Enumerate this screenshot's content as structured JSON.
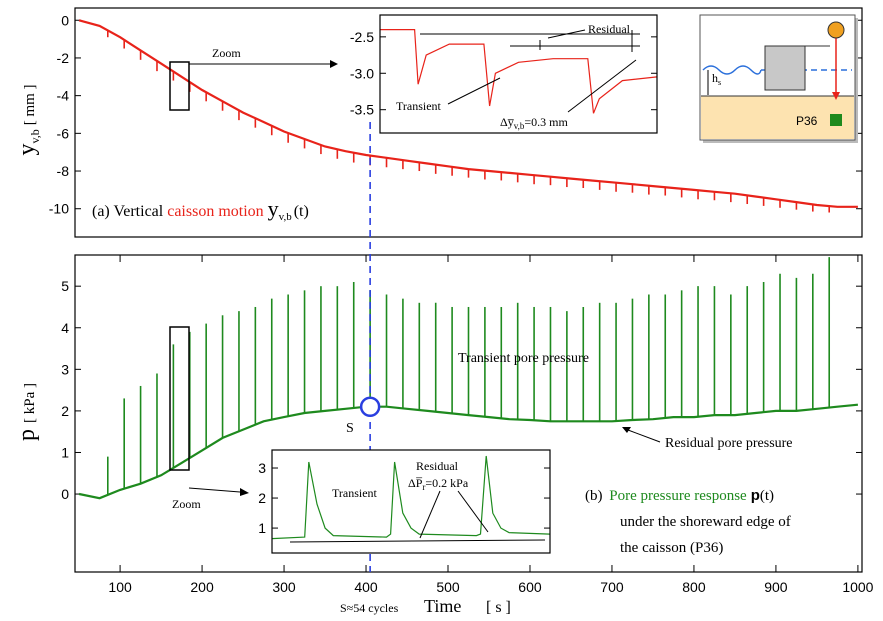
{
  "chart_data": [
    {
      "type": "line",
      "xlim": [
        45,
        1005
      ],
      "ylim": [
        -11.5,
        0.65
      ],
      "yticks": [
        0,
        -2,
        -4,
        -6,
        -8,
        -10
      ],
      "title_parts": [
        "(a)  Vertical ",
        "caisson motion",
        "y",
        "v,b",
        "(t)"
      ],
      "ylabel_parts": [
        "y",
        "v,b",
        "[ mm ]"
      ],
      "zoom_label": "Zoom",
      "series": [
        {
          "color": "#e8231a",
          "x": [
            50,
            75,
            100,
            125,
            150,
            175,
            200,
            225,
            250,
            275,
            300,
            325,
            350,
            375,
            400,
            425,
            450,
            475,
            500,
            525,
            550,
            575,
            600,
            625,
            650,
            675,
            700,
            725,
            750,
            775,
            800,
            825,
            850,
            875,
            900,
            925,
            950,
            975,
            1000
          ],
          "values": [
            0,
            -0.3,
            -0.9,
            -1.6,
            -2.3,
            -3.0,
            -3.7,
            -4.3,
            -4.9,
            -5.4,
            -5.9,
            -6.3,
            -6.7,
            -6.95,
            -7.15,
            -7.3,
            -7.45,
            -7.6,
            -7.75,
            -7.9,
            -8.0,
            -8.1,
            -8.2,
            -8.3,
            -8.4,
            -8.5,
            -8.6,
            -8.7,
            -8.8,
            -8.9,
            -9.0,
            -9.1,
            -9.2,
            -9.35,
            -9.5,
            -9.65,
            -9.8,
            -9.9,
            -9.9
          ]
        },
        {
          "color": "#e8231a",
          "style": "spikes",
          "x": [
            85,
            105,
            125,
            145,
            165,
            185,
            205,
            225,
            245,
            265,
            285,
            305,
            325,
            345,
            365,
            385,
            405,
            425,
            445,
            465,
            485,
            505,
            525,
            545,
            565,
            585,
            605,
            625,
            645,
            665,
            685,
            705,
            725,
            745,
            765,
            785,
            805,
            825,
            845,
            865,
            885,
            905,
            925,
            945,
            965
          ],
          "values": [
            -0.9,
            -1.5,
            -2.1,
            -2.7,
            -3.2,
            -3.8,
            -4.3,
            -4.8,
            -5.3,
            -5.7,
            -6.1,
            -6.5,
            -6.8,
            -7.1,
            -7.35,
            -7.55,
            -7.7,
            -7.8,
            -7.9,
            -8.0,
            -8.15,
            -8.25,
            -8.35,
            -8.45,
            -8.5,
            -8.6,
            -8.7,
            -8.75,
            -8.85,
            -8.9,
            -9.0,
            -9.1,
            -9.15,
            -9.25,
            -9.3,
            -9.4,
            -9.5,
            -9.55,
            -9.65,
            -9.75,
            -9.85,
            -9.95,
            -10.05,
            -10.15,
            -10.2
          ]
        }
      ]
    },
    {
      "type": "line",
      "xlim": [
        45,
        1005
      ],
      "ylim": [
        -1.875,
        5.75
      ],
      "yticks": [
        0,
        1,
        2,
        3,
        4,
        5
      ],
      "xticks": [
        100,
        200,
        300,
        400,
        500,
        600,
        700,
        800,
        900,
        1000
      ],
      "xlabel": "Time",
      "xlabel_unit": "[ s ]",
      "ylabel_parts": [
        "p",
        "[ kPa ]"
      ],
      "marker": {
        "label": "S",
        "x": 405,
        "y": 2.1,
        "note": "S≈54 cycles"
      },
      "title_parts": [
        "(b) ",
        "Pore pressure response",
        "p",
        "(t)",
        "under the shoreward edge of",
        "the caisson (P36)"
      ],
      "transient_label": "Transient pore pressure",
      "residual_label": "Residual pore pressure",
      "zoom_label": "Zoom",
      "series": [
        {
          "color": "#1e8a1e",
          "x": [
            50,
            75,
            100,
            125,
            150,
            175,
            200,
            225,
            250,
            275,
            300,
            325,
            350,
            375,
            400,
            425,
            450,
            475,
            500,
            525,
            550,
            575,
            600,
            625,
            650,
            675,
            700,
            725,
            750,
            775,
            800,
            825,
            850,
            875,
            900,
            925,
            950,
            975,
            1000
          ],
          "values": [
            0,
            -0.1,
            0.1,
            0.25,
            0.45,
            0.75,
            1.05,
            1.35,
            1.55,
            1.75,
            1.85,
            1.95,
            2.0,
            2.05,
            2.1,
            2.1,
            2.05,
            2.0,
            1.95,
            1.9,
            1.85,
            1.8,
            1.78,
            1.75,
            1.75,
            1.75,
            1.75,
            1.78,
            1.8,
            1.85,
            1.85,
            1.9,
            1.9,
            1.95,
            2.0,
            2.0,
            2.05,
            2.1,
            2.15
          ]
        },
        {
          "color": "#1e8a1e",
          "style": "spikes",
          "x": [
            85,
            105,
            125,
            145,
            165,
            185,
            205,
            225,
            245,
            265,
            285,
            305,
            325,
            345,
            365,
            385,
            405,
            425,
            445,
            465,
            485,
            505,
            525,
            545,
            565,
            585,
            605,
            625,
            645,
            665,
            685,
            705,
            725,
            745,
            765,
            785,
            805,
            825,
            845,
            865,
            885,
            905,
            925,
            945,
            965
          ],
          "values": [
            0.9,
            2.3,
            2.6,
            2.9,
            3.6,
            3.9,
            4.1,
            4.3,
            4.4,
            4.5,
            4.7,
            4.8,
            4.9,
            5.0,
            5.0,
            5.1,
            4.9,
            4.8,
            4.7,
            4.6,
            4.6,
            4.5,
            4.5,
            4.5,
            4.5,
            4.6,
            4.5,
            4.5,
            4.4,
            4.5,
            4.6,
            4.6,
            4.7,
            4.8,
            4.8,
            4.9,
            5.0,
            5.0,
            4.8,
            5.0,
            5.1,
            5.3,
            5.2,
            5.3,
            5.7
          ]
        }
      ]
    },
    {
      "type": "line",
      "xlim": [
        160,
        184
      ],
      "ylim": [
        -3.82,
        -2.2
      ],
      "yticks": [
        {
          "value": -2.5,
          "label": "-2.5"
        },
        {
          "value": -3.0,
          "label": "-3.0"
        },
        {
          "value": -3.5,
          "label": "-3.5"
        }
      ],
      "residual_label": "Residual",
      "transient_label": "Transient",
      "delta_parts": [
        "Δ",
        "y̅",
        "v,b",
        "=0.3 mm"
      ],
      "series": [
        {
          "color": "#e8231a",
          "x": [
            160,
            163,
            163.3,
            164,
            166,
            169,
            169.5,
            170,
            172,
            175,
            178,
            178.5,
            179,
            181,
            184
          ],
          "values": [
            -2.4,
            -2.4,
            -3.15,
            -2.75,
            -2.6,
            -2.6,
            -3.45,
            -3.0,
            -2.85,
            -2.8,
            -2.8,
            -3.55,
            -3.35,
            -3.1,
            -3.05
          ]
        }
      ]
    },
    {
      "type": "line",
      "xlim": [
        0,
        340
      ],
      "ylim": [
        0.17,
        3.6
      ],
      "yticks": [
        1,
        2,
        3
      ],
      "transient_label": "Transient",
      "residual_label": "Residual",
      "delta_parts": [
        "ΔP̅",
        "r",
        "=0.2 kPa"
      ],
      "series": [
        {
          "color": "#1e8a1e",
          "x": [
            0,
            40,
            45,
            55,
            65,
            75,
            140,
            145,
            150,
            160,
            170,
            180,
            250,
            255,
            262,
            270,
            280,
            290,
            340
          ],
          "values": [
            0.65,
            0.7,
            3.2,
            1.8,
            1.0,
            0.75,
            0.7,
            0.8,
            3.2,
            1.5,
            1.0,
            0.8,
            0.75,
            0.8,
            3.4,
            1.5,
            1.0,
            0.85,
            0.8
          ]
        }
      ]
    }
  ],
  "diagram": {
    "hs_parts": [
      "h",
      "s"
    ],
    "sensor": "P36"
  }
}
